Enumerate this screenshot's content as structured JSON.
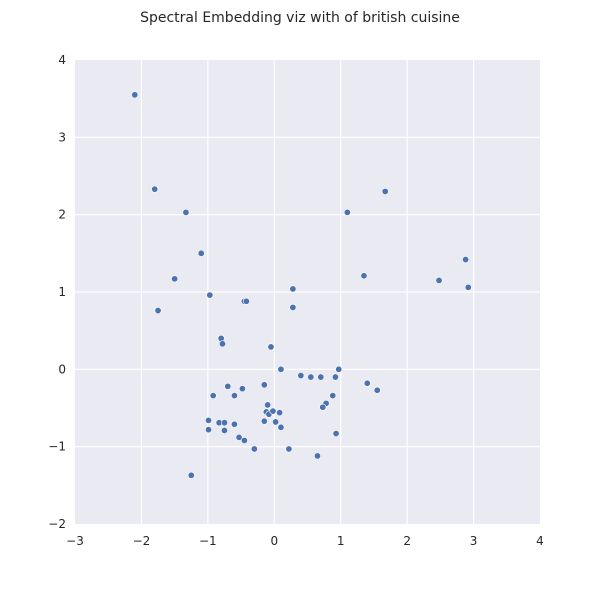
{
  "chart_data": {
    "type": "scatter",
    "title": "Spectral Embedding viz with of british cuisine",
    "xlabel": "",
    "ylabel": "",
    "xlim": [
      -3,
      4
    ],
    "ylim": [
      -2,
      4
    ],
    "x_ticks": [
      -3,
      -2,
      -1,
      0,
      1,
      2,
      3,
      4
    ],
    "y_ticks": [
      -2,
      -1,
      0,
      1,
      2,
      3,
      4
    ],
    "x_tick_labels": [
      "−3",
      "−2",
      "−1",
      "0",
      "1",
      "2",
      "3",
      "4"
    ],
    "y_tick_labels": [
      "−2",
      "−1",
      "0",
      "1",
      "2",
      "3",
      "4"
    ],
    "grid": true,
    "colors": {
      "background": "#eaeaf2",
      "grid": "#ffffff",
      "point": "#4c72b0",
      "point_edge": "#ffffff"
    },
    "x": [
      -2.1,
      -1.8,
      -1.33,
      -1.1,
      -1.5,
      -1.75,
      -0.97,
      -0.45,
      -0.42,
      -0.8,
      -0.78,
      -0.05,
      0.1,
      0.4,
      0.55,
      0.7,
      0.97,
      -0.7,
      -0.15,
      -0.6,
      -0.92,
      -0.48,
      -0.1,
      -0.12,
      -0.08,
      -0.02,
      0.08,
      -0.99,
      -0.83,
      -0.75,
      -0.6,
      -0.15,
      0.02,
      0.1,
      -0.99,
      -0.75,
      -0.53,
      -0.45,
      -0.3,
      0.22,
      0.65,
      1.4,
      1.55,
      0.88,
      0.92,
      0.78,
      0.73,
      0.93,
      -1.25,
      1.1,
      1.67,
      1.35,
      0.28,
      0.28,
      2.48,
      2.88,
      2.92
    ],
    "y": [
      3.55,
      2.33,
      2.03,
      1.5,
      1.17,
      0.76,
      0.96,
      0.88,
      0.88,
      0.4,
      0.33,
      0.29,
      0.0,
      -0.08,
      -0.1,
      -0.1,
      0.0,
      -0.22,
      -0.2,
      -0.34,
      -0.34,
      -0.25,
      -0.46,
      -0.55,
      -0.58,
      -0.54,
      -0.56,
      -0.66,
      -0.69,
      -0.69,
      -0.71,
      -0.67,
      -0.68,
      -0.75,
      -0.78,
      -0.79,
      -0.88,
      -0.92,
      -1.03,
      -1.03,
      -1.12,
      -0.18,
      -0.27,
      -0.34,
      -0.1,
      -0.44,
      -0.49,
      -0.83,
      -1.37,
      2.03,
      2.3,
      1.21,
      1.04,
      0.8,
      1.15,
      1.42,
      1.06
    ]
  }
}
